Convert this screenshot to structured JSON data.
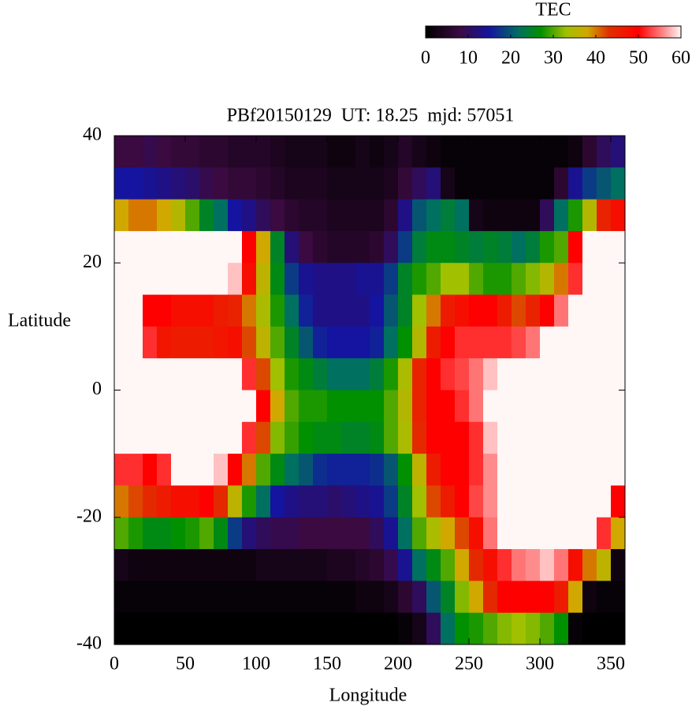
{
  "chart_data": {
    "type": "heatmap",
    "title": "PBf20150129  UT: 18.25  mjd: 57051",
    "x_label": "Longitude",
    "y_label": "Latitude",
    "colorbar_label": "TEC",
    "xlim": [
      0,
      360
    ],
    "ylim": [
      -40,
      40
    ],
    "xticks": [
      0,
      50,
      100,
      150,
      200,
      250,
      300,
      350
    ],
    "yticks": [
      -40,
      -20,
      0,
      20,
      40
    ],
    "zlim": [
      0,
      60
    ],
    "zticks": [
      0,
      10,
      20,
      30,
      40,
      50,
      60
    ],
    "colormap": [
      [
        0,
        "#000000"
      ],
      [
        8,
        "#3a0a40"
      ],
      [
        15,
        "#1414a0"
      ],
      [
        22,
        "#007060"
      ],
      [
        27,
        "#009000"
      ],
      [
        33,
        "#a0c000"
      ],
      [
        38,
        "#d0a800"
      ],
      [
        43,
        "#e03000"
      ],
      [
        50,
        "#ff0000"
      ],
      [
        56,
        "#ff8c8c"
      ],
      [
        60,
        "#fff6f6"
      ]
    ],
    "x": [
      5,
      15,
      25,
      35,
      45,
      55,
      65,
      75,
      85,
      95,
      105,
      115,
      125,
      135,
      145,
      155,
      165,
      175,
      185,
      195,
      205,
      215,
      225,
      235,
      245,
      255,
      265,
      275,
      285,
      295,
      305,
      315,
      325,
      335,
      345,
      355
    ],
    "y": [
      37.5,
      32.5,
      27.5,
      22.5,
      17.5,
      12.5,
      7.5,
      2.5,
      -2.5,
      -7.5,
      -12.5,
      -17.5,
      -22.5,
      -27.5,
      -32.5,
      -37.5
    ],
    "z": [
      [
        8,
        8,
        9,
        8,
        7,
        7,
        6,
        6,
        5,
        5,
        5,
        4,
        3,
        3,
        3,
        2,
        2,
        3,
        2,
        3,
        5,
        3,
        2,
        1,
        1,
        1,
        1,
        1,
        1,
        1,
        1,
        1,
        2,
        6,
        10,
        12
      ],
      [
        15,
        15,
        14,
        13,
        12,
        11,
        9,
        8,
        7,
        7,
        6,
        5,
        4,
        4,
        4,
        3,
        3,
        3,
        3,
        4,
        7,
        10,
        12,
        3,
        1,
        1,
        1,
        1,
        1,
        1,
        1,
        6,
        14,
        18,
        20,
        22
      ],
      [
        38,
        40,
        40,
        38,
        35,
        30,
        25,
        22,
        15,
        13,
        10,
        8,
        6,
        5,
        5,
        4,
        4,
        4,
        4,
        6,
        13,
        20,
        22,
        24,
        22,
        3,
        2,
        2,
        2,
        2,
        10,
        22,
        28,
        35,
        45,
        48
      ],
      [
        62,
        62,
        62,
        62,
        62,
        62,
        62,
        62,
        62,
        50,
        38,
        25,
        12,
        8,
        6,
        5,
        5,
        5,
        6,
        10,
        18,
        24,
        26,
        26,
        25,
        24,
        25,
        24,
        22,
        24,
        28,
        30,
        50,
        62,
        62,
        62
      ],
      [
        62,
        62,
        62,
        62,
        62,
        62,
        62,
        62,
        58,
        48,
        36,
        26,
        18,
        14,
        13,
        13,
        13,
        14,
        14,
        18,
        25,
        28,
        30,
        33,
        33,
        30,
        28,
        28,
        30,
        32,
        35,
        40,
        52,
        62,
        62,
        62
      ],
      [
        62,
        62,
        50,
        50,
        48,
        48,
        48,
        46,
        45,
        40,
        34,
        28,
        22,
        16,
        13,
        13,
        13,
        13,
        15,
        20,
        25,
        33,
        40,
        46,
        48,
        50,
        50,
        46,
        42,
        45,
        50,
        55,
        62,
        62,
        62,
        62
      ],
      [
        62,
        60,
        52,
        47,
        46,
        46,
        46,
        47,
        48,
        42,
        36,
        30,
        25,
        20,
        16,
        15,
        15,
        15,
        16,
        22,
        27,
        35,
        46,
        50,
        52,
        52,
        52,
        52,
        53,
        55,
        62,
        62,
        62,
        62,
        62,
        62
      ],
      [
        62,
        62,
        62,
        62,
        62,
        62,
        62,
        62,
        62,
        52,
        42,
        33,
        28,
        26,
        24,
        22,
        22,
        22,
        24,
        28,
        34,
        45,
        50,
        52,
        53,
        55,
        58,
        62,
        62,
        62,
        62,
        62,
        62,
        62,
        62,
        62
      ],
      [
        62,
        62,
        62,
        62,
        62,
        62,
        62,
        62,
        62,
        60,
        50,
        38,
        30,
        28,
        28,
        27,
        27,
        27,
        27,
        30,
        35,
        45,
        50,
        50,
        52,
        55,
        62,
        62,
        62,
        62,
        62,
        62,
        62,
        62,
        62,
        62
      ],
      [
        62,
        62,
        62,
        62,
        62,
        62,
        62,
        62,
        60,
        52,
        42,
        32,
        29,
        27,
        26,
        26,
        25,
        25,
        26,
        30,
        34,
        44,
        50,
        50,
        50,
        52,
        58,
        60,
        62,
        62,
        62,
        62,
        62,
        62,
        62,
        62
      ],
      [
        52,
        52,
        50,
        52,
        60,
        62,
        62,
        58,
        50,
        40,
        30,
        26,
        22,
        20,
        17,
        16,
        16,
        16,
        17,
        20,
        27,
        36,
        46,
        50,
        50,
        52,
        56,
        62,
        62,
        62,
        62,
        62,
        62,
        62,
        62,
        62
      ],
      [
        40,
        42,
        44,
        46,
        48,
        48,
        50,
        44,
        36,
        28,
        22,
        15,
        13,
        12,
        12,
        11,
        12,
        13,
        14,
        18,
        25,
        33,
        42,
        46,
        50,
        53,
        56,
        62,
        62,
        62,
        62,
        62,
        62,
        62,
        62,
        50
      ],
      [
        30,
        28,
        26,
        26,
        27,
        28,
        30,
        26,
        18,
        12,
        10,
        9,
        9,
        8,
        8,
        8,
        8,
        8,
        10,
        14,
        22,
        30,
        34,
        38,
        42,
        48,
        55,
        62,
        62,
        62,
        62,
        62,
        62,
        62,
        52,
        38
      ],
      [
        3,
        2,
        2,
        2,
        2,
        2,
        2,
        2,
        2,
        2,
        3,
        3,
        3,
        3,
        3,
        4,
        4,
        5,
        6,
        9,
        14,
        22,
        26,
        30,
        38,
        44,
        48,
        52,
        55,
        56,
        58,
        55,
        48,
        40,
        36,
        2
      ],
      [
        1,
        1,
        1,
        1,
        1,
        1,
        1,
        1,
        1,
        1,
        1,
        1,
        1,
        1,
        1,
        1,
        1,
        2,
        2,
        3,
        6,
        10,
        20,
        25,
        32,
        38,
        44,
        50,
        50,
        50,
        50,
        46,
        38,
        2,
        1,
        1
      ],
      [
        0,
        0,
        0,
        0,
        0,
        0,
        0,
        0,
        0,
        0,
        0,
        0,
        0,
        0,
        0,
        0,
        0,
        0,
        0,
        0,
        1,
        3,
        10,
        22,
        27,
        28,
        30,
        32,
        33,
        32,
        30,
        27,
        1,
        0,
        0,
        0
      ]
    ]
  }
}
